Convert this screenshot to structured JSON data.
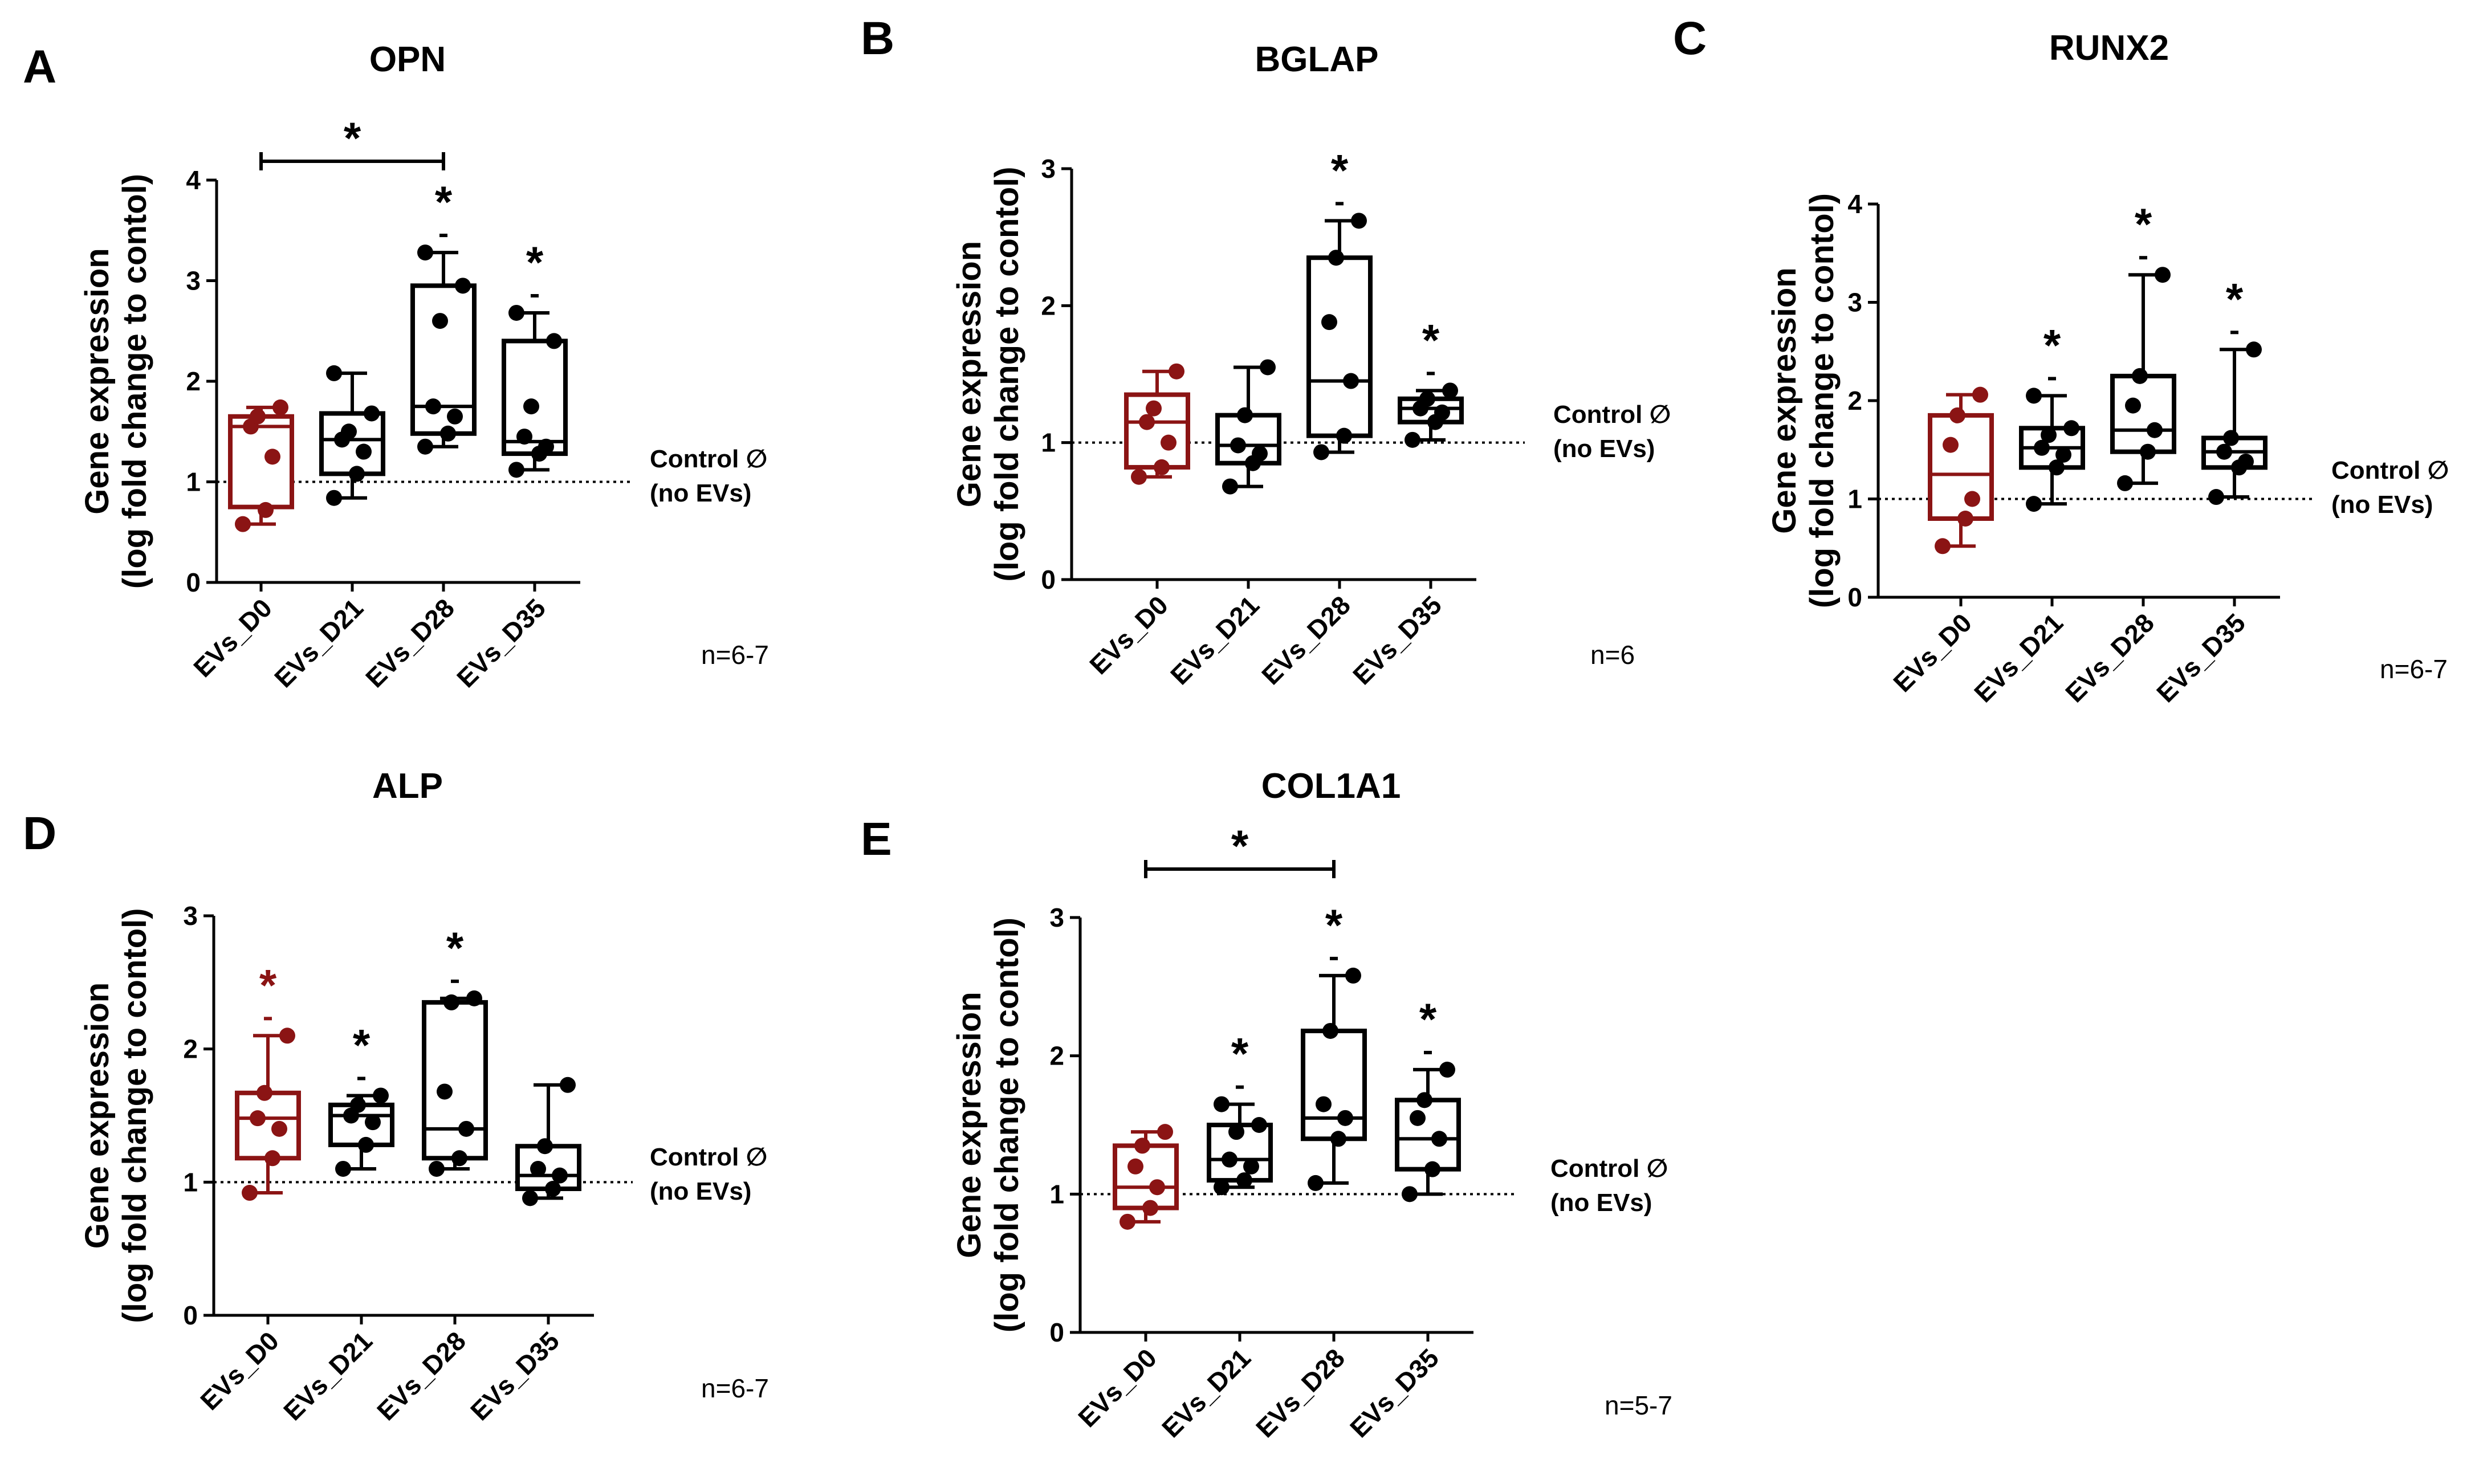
{
  "figure": {
    "n_symbol_note": "∅"
  },
  "colors": {
    "d0": "#8b1414",
    "other": "#000000",
    "axis": "#000000",
    "control_line": "#000000"
  },
  "chart_data": [
    {
      "type": "box",
      "panel": "A",
      "title": "OPN",
      "ylabel_line1": "Gene expression",
      "ylabel_line2": "(log fold change to contol)",
      "ylim": [
        0,
        4
      ],
      "yticks": [
        "0",
        "1",
        "2",
        "3",
        "4"
      ],
      "categories": [
        "EVs_D0",
        "EVs_D21",
        "EVs_D28",
        "EVs_D35"
      ],
      "control_value": 1,
      "control_label_1": "Control ∅",
      "control_label_2": "(no EVs)",
      "n_label": "n=6-7",
      "boxes": [
        {
          "q1": 0.75,
          "median": 1.55,
          "q3": 1.65,
          "min": 0.58,
          "max": 1.74,
          "points": [
            0.58,
            0.72,
            1.25,
            1.55,
            1.65,
            1.74
          ],
          "star": ""
        },
        {
          "q1": 1.08,
          "median": 1.42,
          "q3": 1.68,
          "min": 0.84,
          "max": 2.08,
          "points": [
            0.84,
            1.08,
            1.3,
            1.42,
            1.5,
            1.68,
            2.08
          ],
          "star": ""
        },
        {
          "q1": 1.48,
          "median": 1.75,
          "q3": 2.95,
          "min": 1.35,
          "max": 3.28,
          "points": [
            1.35,
            1.48,
            1.65,
            1.75,
            2.6,
            2.95,
            3.28
          ],
          "star": "*"
        },
        {
          "q1": 1.28,
          "median": 1.4,
          "q3": 2.4,
          "min": 1.12,
          "max": 2.68,
          "points": [
            1.12,
            1.28,
            1.35,
            1.45,
            1.75,
            2.4,
            2.68
          ],
          "star": "*"
        }
      ],
      "bracket": {
        "from": 0,
        "to": 2,
        "label": "*"
      }
    },
    {
      "type": "box",
      "panel": "B",
      "title": "BGLAP",
      "ylabel_line1": "Gene expression",
      "ylabel_line2": "(log fold change to contol)",
      "ylim": [
        0,
        3
      ],
      "yticks": [
        "0",
        "1",
        "2",
        "3"
      ],
      "categories": [
        "EVs_D0",
        "EVs_D21",
        "EVs_D28",
        "EVs_D35"
      ],
      "control_value": 1,
      "control_label_1": "Control ∅",
      "control_label_2": "(no EVs)",
      "n_label": "n=6",
      "boxes": [
        {
          "q1": 0.82,
          "median": 1.15,
          "q3": 1.35,
          "min": 0.75,
          "max": 1.52,
          "points": [
            0.75,
            0.82,
            1.0,
            1.15,
            1.25,
            1.52
          ],
          "star": ""
        },
        {
          "q1": 0.85,
          "median": 0.98,
          "q3": 1.2,
          "min": 0.68,
          "max": 1.55,
          "points": [
            0.68,
            0.85,
            0.92,
            0.98,
            1.2,
            1.55
          ],
          "star": ""
        },
        {
          "q1": 1.05,
          "median": 1.45,
          "q3": 2.35,
          "min": 0.93,
          "max": 2.62,
          "points": [
            0.93,
            1.05,
            1.45,
            1.88,
            2.35,
            2.62
          ],
          "star": "*"
        },
        {
          "q1": 1.15,
          "median": 1.25,
          "q3": 1.32,
          "min": 1.02,
          "max": 1.38,
          "points": [
            1.02,
            1.15,
            1.22,
            1.25,
            1.32,
            1.38
          ],
          "star": "*"
        }
      ]
    },
    {
      "type": "box",
      "panel": "C",
      "title": "RUNX2",
      "ylabel_line1": "Gene expression",
      "ylabel_line2": "(log fold change to contol)",
      "ylim": [
        0,
        4
      ],
      "yticks": [
        "0",
        "1",
        "2",
        "3",
        "4"
      ],
      "categories": [
        "EVs_D0",
        "EVs_D21",
        "EVs_D28",
        "EVs_D35"
      ],
      "control_value": 1,
      "control_label_1": "Control ∅",
      "control_label_2": "(no EVs)",
      "n_label": "n=6-7",
      "boxes": [
        {
          "q1": 0.8,
          "median": 1.25,
          "q3": 1.85,
          "min": 0.52,
          "max": 2.06,
          "points": [
            0.52,
            0.8,
            1.0,
            1.55,
            1.85,
            2.06
          ],
          "star": ""
        },
        {
          "q1": 1.32,
          "median": 1.52,
          "q3": 1.72,
          "min": 0.95,
          "max": 2.05,
          "points": [
            0.95,
            1.32,
            1.45,
            1.52,
            1.65,
            1.72,
            2.05
          ],
          "star": "*"
        },
        {
          "q1": 1.48,
          "median": 1.7,
          "q3": 2.25,
          "min": 1.16,
          "max": 3.28,
          "points": [
            1.16,
            1.48,
            1.7,
            1.95,
            2.25,
            3.28
          ],
          "star": "*"
        },
        {
          "q1": 1.32,
          "median": 1.48,
          "q3": 1.62,
          "min": 1.02,
          "max": 2.52,
          "points": [
            1.02,
            1.32,
            1.38,
            1.48,
            1.62,
            2.52
          ],
          "star": "*"
        }
      ]
    },
    {
      "type": "box",
      "panel": "D",
      "title": "ALP",
      "ylabel_line1": "Gene expression",
      "ylabel_line2": "(log fold change to contol)",
      "ylim": [
        0,
        3
      ],
      "yticks": [
        "0",
        "1",
        "2",
        "3"
      ],
      "categories": [
        "EVs_D0",
        "EVs_D21",
        "EVs_D28",
        "EVs_D35"
      ],
      "control_value": 1,
      "control_label_1": "Control ∅",
      "control_label_2": "(no EVs)",
      "n_label": "n=6-7",
      "boxes": [
        {
          "q1": 1.18,
          "median": 1.48,
          "q3": 1.67,
          "min": 0.92,
          "max": 2.1,
          "points": [
            0.92,
            1.18,
            1.4,
            1.48,
            1.67,
            2.1
          ],
          "star": "*"
        },
        {
          "q1": 1.28,
          "median": 1.5,
          "q3": 1.58,
          "min": 1.1,
          "max": 1.65,
          "points": [
            1.1,
            1.28,
            1.45,
            1.5,
            1.58,
            1.65
          ],
          "star": "*"
        },
        {
          "q1": 1.18,
          "median": 1.4,
          "q3": 2.35,
          "min": 1.1,
          "max": 2.38,
          "points": [
            1.1,
            1.18,
            1.4,
            1.68,
            2.35,
            2.38
          ],
          "star": "*"
        },
        {
          "q1": 0.95,
          "median": 1.05,
          "q3": 1.27,
          "min": 0.88,
          "max": 1.73,
          "points": [
            0.88,
            0.95,
            1.05,
            1.1,
            1.27,
            1.73
          ],
          "star": ""
        }
      ]
    },
    {
      "type": "box",
      "panel": "E",
      "title": "COL1A1",
      "ylabel_line1": "Gene expression",
      "ylabel_line2": "(log fold change to contol)",
      "ylim": [
        0,
        3
      ],
      "yticks": [
        "0",
        "1",
        "2",
        "3"
      ],
      "categories": [
        "EVs_D0",
        "EVs_D21",
        "EVs_D28",
        "EVs_D35"
      ],
      "control_value": 1,
      "control_label_1": "Control ∅",
      "control_label_2": "(no EVs)",
      "n_label": "n=5-7",
      "boxes": [
        {
          "q1": 0.9,
          "median": 1.05,
          "q3": 1.35,
          "min": 0.8,
          "max": 1.45,
          "points": [
            0.8,
            0.9,
            1.05,
            1.2,
            1.35,
            1.45
          ],
          "star": ""
        },
        {
          "q1": 1.1,
          "median": 1.25,
          "q3": 1.5,
          "min": 1.05,
          "max": 1.65,
          "points": [
            1.05,
            1.1,
            1.2,
            1.25,
            1.45,
            1.5,
            1.65
          ],
          "star": "*"
        },
        {
          "q1": 1.4,
          "median": 1.55,
          "q3": 2.18,
          "min": 1.08,
          "max": 2.58,
          "points": [
            1.08,
            1.4,
            1.55,
            1.65,
            2.18,
            2.58
          ],
          "star": "*"
        },
        {
          "q1": 1.18,
          "median": 1.4,
          "q3": 1.68,
          "min": 1.0,
          "max": 1.9,
          "points": [
            1.0,
            1.18,
            1.4,
            1.55,
            1.68,
            1.9
          ],
          "star": "*"
        }
      ],
      "bracket": {
        "from": 0,
        "to": 2,
        "label": "*"
      }
    }
  ]
}
